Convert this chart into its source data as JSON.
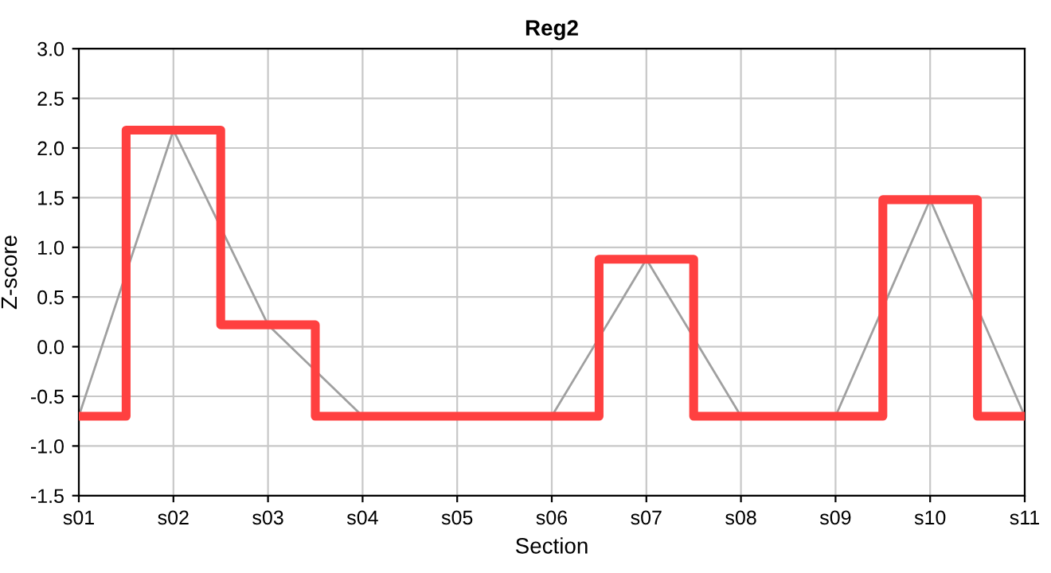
{
  "chart_data": {
    "type": "step",
    "title": "Reg2",
    "xlabel": "Section",
    "ylabel": "Z-score",
    "categories": [
      "s01",
      "s02",
      "s03",
      "s04",
      "s05",
      "s06",
      "s07",
      "s08",
      "s09",
      "s10",
      "s11"
    ],
    "series": [
      {
        "type": "line",
        "color": "#a0a0a0",
        "values": [
          -0.7,
          2.18,
          0.22,
          -0.7,
          -0.7,
          -0.7,
          0.88,
          -0.7,
          -0.7,
          1.48,
          -0.7
        ]
      },
      {
        "color": "#ff4040",
        "values": [
          -0.7,
          2.18,
          0.22,
          -0.7,
          -0.7,
          -0.7,
          0.88,
          -0.7,
          -0.7,
          1.48,
          -0.7
        ]
      }
    ],
    "ylim": [
      -1.5,
      3.0
    ],
    "yticks": [
      {
        "value": -1.5,
        "label": "-1.5"
      },
      {
        "value": -1.0,
        "label": "-1.0"
      },
      {
        "value": -0.5,
        "label": "-0.5"
      },
      {
        "value": 0,
        "label": "0.0"
      },
      {
        "value": 0.5,
        "label": "0.5"
      },
      {
        "value": 1.0,
        "label": "1.0"
      },
      {
        "value": 1.5,
        "label": "1.5"
      },
      {
        "value": 2.0,
        "label": "2.0"
      },
      {
        "value": 2.5,
        "label": "2.5"
      },
      {
        "value": 3.0,
        "label": "3.0"
      }
    ],
    "grid": true
  }
}
